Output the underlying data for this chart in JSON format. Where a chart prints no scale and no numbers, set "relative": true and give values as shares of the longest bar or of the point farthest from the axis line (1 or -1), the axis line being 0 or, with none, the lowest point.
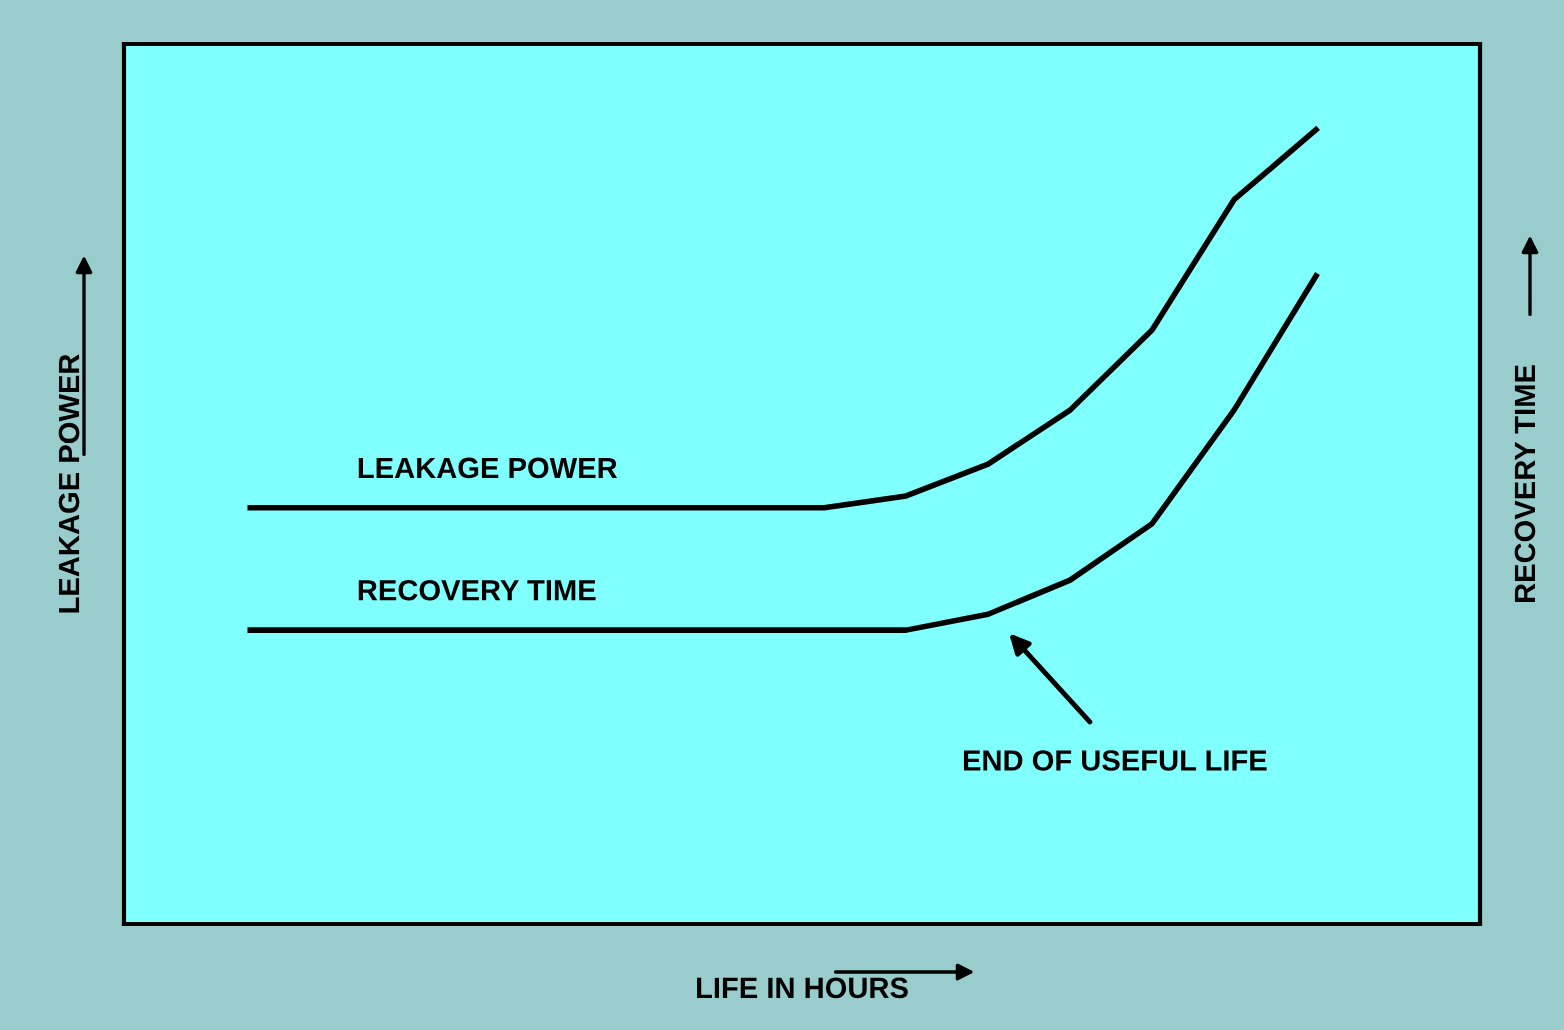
{
  "chart_data": {
    "type": "line",
    "relative": true,
    "xlabel": "LIFE IN HOURS",
    "ylabel": "LEAKAGE POWER",
    "categories": [
      null,
      null,
      null,
      null,
      null,
      null,
      null,
      null,
      null,
      null,
      null,
      null,
      null,
      null
    ],
    "series": [
      {
        "name": "LEAKAGE POWER",
        "color": "#000000",
        "values": [
          0.524,
          0.524,
          0.524,
          0.524,
          0.524,
          0.524,
          0.524,
          0.524,
          0.539,
          0.579,
          0.647,
          0.748,
          0.912,
          1.0
        ]
      },
      {
        "name": "RECOVERY TIME",
        "color": "#000000",
        "values": [
          0.37,
          0.37,
          0.37,
          0.37,
          0.37,
          0.37,
          0.37,
          0.37,
          0.37,
          0.39,
          0.433,
          0.504,
          0.647,
          0.816
        ]
      }
    ],
    "annotations": [
      "END OF USEFUL LIFE",
      "RECOVERY TIME"
    ],
    "grid": false,
    "marker": "none",
    "line_style": "solid"
  }
}
